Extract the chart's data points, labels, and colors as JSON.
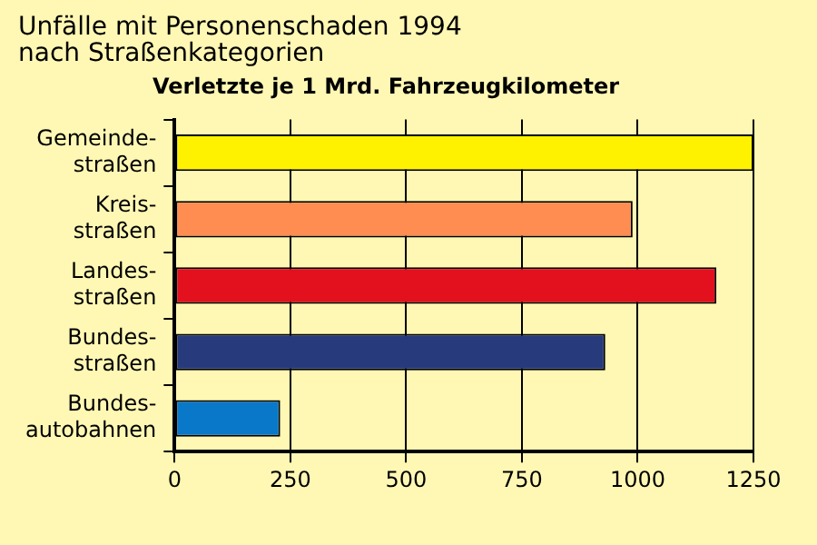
{
  "chart_data": {
    "type": "bar",
    "orientation": "horizontal",
    "title": "Unfälle mit Personenschaden 1994\nnach Straßenkategorien",
    "subtitle": "Verletzte je 1 Mrd. Fahrzeugkilometer",
    "categories": [
      "Gemeinde-\nstraßen",
      "Kreis-\nstraßen",
      "Landes-\nstraßen",
      "Bundes-\nstraßen",
      "Bundes-\nautobahnen"
    ],
    "values": [
      1250,
      989,
      1170,
      930,
      228
    ],
    "colors": [
      "#fff200",
      "#ff8c50",
      "#e3101e",
      "#263a7c",
      "#0a78c8"
    ],
    "xlim": [
      0,
      1250
    ],
    "xticks": [
      0,
      250,
      500,
      750,
      1000,
      1250
    ],
    "grid": "x"
  }
}
